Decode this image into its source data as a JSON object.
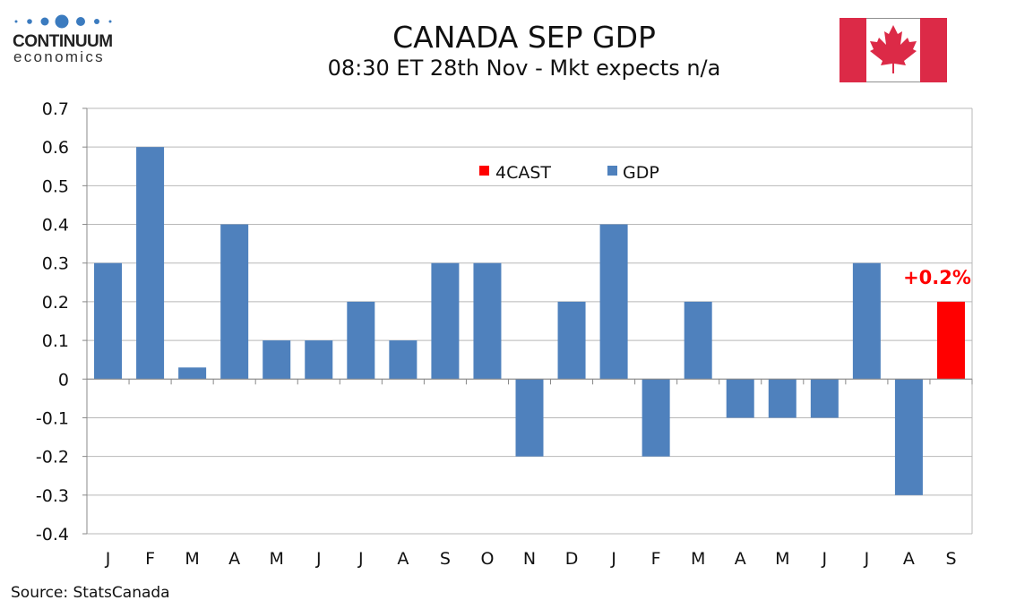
{
  "header": {
    "title": "CANADA SEP GDP",
    "subtitle": "08:30 ET 28th Nov - Mkt expects n/a"
  },
  "logo": {
    "line1": "CONTINUUM",
    "line2": "economics"
  },
  "source": "Source: StatsCanada",
  "colors": {
    "gdp": "#4f81bd",
    "forecast": "#ff0000",
    "flag_red": "#d52b1e"
  },
  "chart_data": {
    "type": "bar",
    "title": "CANADA SEP GDP",
    "subtitle": "08:30 ET 28th Nov - Mkt expects n/a",
    "categories": [
      "J",
      "F",
      "M",
      "A",
      "M",
      "J",
      "J",
      "A",
      "S",
      "O",
      "N",
      "D",
      "J",
      "F",
      "M",
      "A",
      "M",
      "J",
      "J",
      "A",
      "S"
    ],
    "series": [
      {
        "name": "GDP",
        "values": [
          0.3,
          0.6,
          0.03,
          0.4,
          0.1,
          0.1,
          0.2,
          0.1,
          0.3,
          0.3,
          -0.2,
          0.2,
          0.4,
          -0.2,
          0.2,
          -0.1,
          -0.1,
          -0.1,
          0.3,
          -0.3,
          null
        ]
      },
      {
        "name": "4CAST",
        "values": [
          null,
          null,
          null,
          null,
          null,
          null,
          null,
          null,
          null,
          null,
          null,
          null,
          null,
          null,
          null,
          null,
          null,
          null,
          null,
          null,
          0.2
        ]
      }
    ],
    "annotation": "+0.2%",
    "ylim": [
      -0.4,
      0.7
    ],
    "yticks": [
      "0.7",
      "0.6",
      "0.5",
      "0.4",
      "0.3",
      "0.2",
      "0.1",
      "0",
      "-0.1",
      "-0.2",
      "-0.3",
      "-0.4"
    ],
    "grid": true,
    "legend": "top-center"
  }
}
